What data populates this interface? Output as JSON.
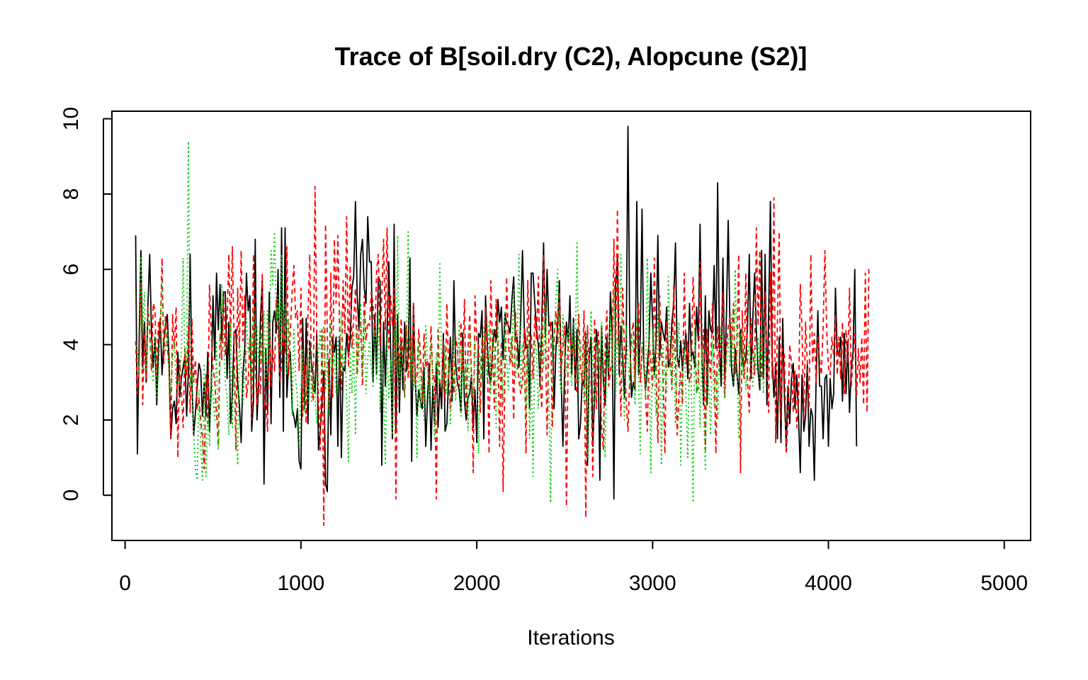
{
  "chart_data": {
    "type": "line",
    "title": "Trace of B[soil.dry (C2), Alopcune (S2)]",
    "xlabel": "Iterations",
    "ylabel": "",
    "xlim": [
      -75,
      5150
    ],
    "ylim": [
      -1.2,
      10.2
    ],
    "x_ticks": [
      0,
      1000,
      2000,
      3000,
      4000,
      5000
    ],
    "x_tick_labels": [
      "0",
      "1000",
      "2000",
      "3000",
      "4000",
      "5000"
    ],
    "y_ticks": [
      0,
      2,
      4,
      6,
      8,
      10
    ],
    "y_tick_labels": [
      "0",
      "2",
      "4",
      "6",
      "8",
      "10"
    ],
    "grid": false,
    "legend": "none",
    "x_start": 60,
    "x_step": 10,
    "series": [
      {
        "color": "#000000",
        "dash": "solid",
        "values": [
          6.9,
          1.1,
          4.2,
          6.5,
          3.4,
          4.6,
          3.0,
          5.1,
          6.4,
          4.3,
          3.4,
          4.2,
          2.4,
          3.9,
          4.7,
          3.2,
          4.1,
          4.5,
          4.8,
          3.6,
          1.5,
          2.3,
          2.5,
          1.9,
          3.8,
          2.6,
          3.1,
          3.4,
          3.7,
          2.1,
          3.3,
          6.4,
          3.0,
          1.6,
          2.2,
          2.9,
          3.5,
          3.3,
          2.1,
          3.0,
          2.1,
          3.8,
          1.7,
          2.9,
          5.3,
          3.6,
          5.9,
          4.4,
          5.6,
          4.1,
          5.4,
          5.4,
          3.1,
          4.6,
          1.9,
          2.7,
          4.3,
          4.4,
          3.0,
          2.4,
          1.4,
          3.2,
          3.9,
          5.9,
          4.9,
          5.3,
          1.7,
          2.5,
          6.8,
          2.0,
          3.0,
          4.7,
          5.7,
          0.3,
          3.9,
          2.2,
          5.4,
          1.9,
          4.6,
          4.9,
          4.3,
          6.0,
          2.6,
          7.1,
          1.7,
          7.1,
          2.6,
          3.5,
          3.8,
          2.3,
          2.1,
          1.8,
          2.3,
          0.9,
          0.7,
          4.7,
          2.3,
          4.7,
          1.9,
          4.1,
          3.5,
          3.2,
          2.7,
          4.3,
          1.2,
          1.7,
          2.5,
          3.3,
          0.3,
          0.1,
          3.6,
          1.6,
          4.2,
          3.8,
          4.2,
          1.3,
          4.2,
          1.0,
          3.4,
          3.3,
          4.3,
          3.7,
          4.1,
          5.5,
          5.8,
          7.8,
          5.3,
          4.4,
          6.4,
          6.8,
          5.5,
          5.1,
          7.4,
          6.2,
          6.2,
          3.0,
          4.8,
          3.2,
          5.8,
          5.7,
          0.8,
          4.6,
          2.9,
          4.4,
          6.2,
          3.9,
          1.5,
          7.2,
          1.7,
          4.8,
          2.2,
          4.1,
          2.8,
          4.6,
          3.3,
          3.7,
          6.3,
          0.9,
          5.1,
          3.1,
          2.1,
          2.8,
          2.5,
          2.3,
          3.4,
          1.3,
          2.6,
          3.5,
          1.2,
          2.9,
          1.9,
          3.5,
          1.8,
          3.0,
          2.3,
          4.3,
          1.7,
          1.9,
          3.1,
          4.2,
          2.5,
          5.7,
          3.5,
          3.0,
          2.8,
          2.2,
          4.3,
          2.5,
          2.0,
          2.6,
          2.7,
          3.2,
          1.8,
          2.8,
          1.4,
          4.3,
          4.2,
          4.9,
          1.5,
          5.3,
          4.0,
          3.2,
          3.0,
          3.9,
          4.4,
          4.1,
          5.2,
          4.6,
          5.0,
          3.6,
          4.8,
          4.6,
          4.5,
          4.3,
          5.2,
          5.8,
          4.1,
          4.2,
          3.4,
          4.7,
          6.5,
          4.5,
          3.9,
          4.0,
          2.3,
          5.9,
          5.9,
          5.1,
          4.4,
          4.0,
          2.9,
          4.6,
          6.7,
          4.2,
          6.0,
          4.5,
          4.5,
          4.6,
          2.3,
          3.9,
          4.5,
          5.7,
          3.1,
          1.3,
          3.4,
          4.6,
          4.1,
          5.3,
          3.2,
          4.7,
          2.8,
          4.4,
          1.5,
          1.9,
          3.1,
          2.9,
          4.3,
          0.8,
          3.7,
          4.2,
          1.3,
          2.6,
          4.4,
          3.8,
          0.4,
          4.5,
          3.1,
          2.4,
          4.2,
          3.1,
          5.4,
          4.3,
          -0.1,
          5.6,
          6.3,
          3.2,
          4.5,
          3.7,
          2.6,
          3.9,
          9.8,
          4.4,
          2.6,
          3.0,
          2.8,
          7.8,
          3.2,
          4.2,
          7.6,
          3.5,
          2.8,
          3.4,
          4.1,
          5.9,
          4.6,
          3.2,
          4.1,
          6.9,
          3.6,
          4.6,
          4.3,
          4.1,
          5.0,
          3.4,
          3.6,
          4.6,
          5.1,
          6.7,
          3.7,
          3.4,
          4.1,
          3.3,
          3.9,
          4.3,
          3.1,
          5.1,
          3.7,
          3.8,
          3.4,
          5.0,
          4.1,
          7.2,
          3.9,
          2.4,
          5.3,
          2.4,
          4.9,
          4.4,
          4.3,
          6.1,
          3.9,
          8.3,
          4.1,
          2.9,
          6.3,
          3.1,
          4.8,
          7.3,
          4.5,
          3.3,
          2.9,
          3.9,
          3.2,
          2.7,
          4.4,
          3.6,
          3.4,
          3.6,
          4.5,
          6.4,
          3.1,
          4.7,
          5.9,
          4.4,
          3.3,
          2.8,
          6.5,
          3.1,
          6.4,
          2.4,
          4.8,
          7.8,
          3.7,
          2.6,
          3.5,
          1.5,
          4.2,
          1.4,
          4.7,
          2.6,
          1.3,
          2.9,
          1.9,
          3.1,
          3.5,
          2.3,
          3.2,
          2.1,
          0.6,
          3.2,
          1.7,
          2.1,
          3.5,
          1.3,
          2.3,
          2.1,
          0.4,
          3.1,
          4.9,
          2.9,
          2.9,
          1.5,
          3.1,
          3.2,
          1.3,
          3.1,
          2.3,
          2.7,
          5.5,
          3.8,
          3.7,
          4.2,
          2.5,
          4.3,
          2.7,
          4.1,
          2.2,
          3.4,
          3.8,
          6.0,
          1.3
        ]
      },
      {
        "color": "#ff0000",
        "dash": "dashed",
        "values": [
          4.1,
          2.7,
          3.5,
          5.6,
          2.4,
          4.3,
          3.1,
          5.0,
          4.4,
          3.3,
          5.1,
          4.9,
          3.2,
          4.6,
          4.2,
          6.3,
          3.5,
          4.8,
          4.0,
          3.3,
          1.5,
          4.8,
          3.9,
          5.0,
          1.0,
          3.6,
          2.8,
          1.8,
          3.9,
          3.2,
          4.5,
          2.2,
          4.7,
          3.0,
          3.6,
          2.3,
          2.6,
          2.0,
          1.5,
          0.7,
          3.2,
          1.9,
          5.6,
          4.3,
          3.4,
          3.0,
          2.2,
          1.3,
          4.3,
          3.6,
          5.3,
          3.7,
          4.6,
          6.4,
          4.2,
          6.6,
          4.0,
          1.2,
          5.5,
          3.9,
          6.5,
          4.1,
          5.3,
          2.6,
          3.0,
          4.2,
          2.0,
          6.4,
          3.5,
          2.4,
          3.1,
          2.7,
          5.9,
          2.3,
          2.5,
          1.7,
          4.6,
          2.9,
          3.9,
          3.3,
          5.2,
          4.4,
          3.0,
          3.5,
          4.9,
          3.8,
          6.6,
          3.2,
          4.4,
          5.4,
          6.1,
          4.7,
          4.9,
          3.3,
          5.5,
          2.1,
          3.5,
          1.9,
          4.8,
          6.4,
          3.3,
          2.5,
          8.2,
          4.3,
          2.5,
          1.2,
          4.4,
          -0.8,
          7.2,
          4.3,
          2.3,
          5.9,
          2.6,
          6.8,
          5.1,
          6.9,
          4.4,
          2.8,
          5.7,
          4.3,
          7.4,
          3.4,
          6.1,
          3.9,
          4.7,
          5.5,
          3.2,
          4.4,
          4.6,
          2.9,
          5.3,
          4.1,
          4.6,
          4.5,
          5.4,
          5.1,
          4.2,
          5.9,
          6.4,
          4.0,
          5.3,
          6.8,
          4.4,
          7.1,
          3.9,
          5.3,
          4.5,
          5.5,
          -0.1,
          4.1,
          3.4,
          4.7,
          3.6,
          2.6,
          4.5,
          3.1,
          4.2,
          3.0,
          5.1,
          2.9,
          3.2,
          4.4,
          3.7,
          2.5,
          4.3,
          3.4,
          3.6,
          2.8,
          4.5,
          3.1,
          3.2,
          -0.1,
          4.4,
          3.0,
          2.8,
          4.1,
          2.5,
          5.1,
          3.3,
          2.3,
          3.6,
          2.7,
          4.2,
          3.9,
          2.9,
          4.6,
          3.3,
          5.2,
          2.2,
          3.9,
          4.8,
          3.1,
          0.6,
          5.3,
          4.1,
          4.0,
          2.2,
          4.2,
          3.4,
          5.0,
          3.6,
          1.1,
          5.7,
          3.9,
          2.3,
          5.2,
          4.0,
          1.3,
          4.1,
          0.1,
          3.2,
          5.8,
          4.0,
          3.5,
          4.2,
          2.0,
          4.9,
          3.5,
          3.1,
          2.7,
          3.0,
          4.4,
          1.1,
          5.7,
          3.9,
          4.3,
          3.1,
          4.8,
          4.1,
          5.8,
          3.1,
          2.3,
          6.4,
          4.4,
          1.6,
          4.3,
          4.6,
          1.8,
          4.2,
          4.9,
          4.0,
          5.4,
          3.3,
          3.9,
          4.5,
          -0.3,
          4.0,
          4.3,
          3.7,
          4.1,
          3.1,
          2.7,
          4.8,
          3.4,
          3.0,
          4.9,
          -0.6,
          4.5,
          3.2,
          3.0,
          0.5,
          4.7,
          2.3,
          4.4,
          3.7,
          1.8,
          1.2,
          3.9,
          4.9,
          2.9,
          3.3,
          3.6,
          6.8,
          3.9,
          7.6,
          3.7,
          2.1,
          5.5,
          3.8,
          2.5,
          1.7,
          3.1,
          4.3,
          4.6,
          2.9,
          4.4,
          5.1,
          3.0,
          3.9,
          3.6,
          2.6,
          1.7,
          4.1,
          3.5,
          2.9,
          6.3,
          3.2,
          1.4,
          5.3,
          3.9,
          3.1,
          1.1,
          4.6,
          3.7,
          3.9,
          2.8,
          5.6,
          3.7,
          1.6,
          2.7,
          3.3,
          2.4,
          5.9,
          3.5,
          4.1,
          3.0,
          3.2,
          5.8,
          4.5,
          2.7,
          2.9,
          6.2,
          3.5,
          4.4,
          1.2,
          4.4,
          3.7,
          3.1,
          5.1,
          3.6,
          1.1,
          4.5,
          3.3,
          4.3,
          5.4,
          2.6,
          3.8,
          4.5,
          4.7,
          3.9,
          5.1,
          3.2,
          3.9,
          6.4,
          0.6,
          4.9,
          3.1,
          5.9,
          3.0,
          2.2,
          4.7,
          3.9,
          3.2,
          7.1,
          4.5,
          6.5,
          3.1,
          4.3,
          5.4,
          3.4,
          2.2,
          5.9,
          3.1,
          7.9,
          1.4,
          4.6,
          7.0,
          2.0,
          3.9,
          3.7,
          1.1,
          2.0,
          4.0,
          3.5,
          2.2,
          3.3,
          1.8,
          2.5,
          5.6,
          4.4,
          2.0,
          4.6,
          3.5,
          2.3,
          6.4,
          3.5,
          4.3,
          3.0,
          4.2,
          3.6,
          3.2,
          4.5,
          6.5,
          4.4,
          3.4,
          3.2,
          4.2,
          3.7,
          4.8,
          3.2,
          4.2,
          3.1,
          4.6,
          2.7,
          4.4,
          3.5,
          5.5,
          2.9,
          3.6,
          4.3,
          2.6,
          3.9,
          3.0,
          4.2,
          2.4,
          5.9,
          2.2,
          6.1
        ]
      },
      {
        "color": "#00cd00",
        "dash": "dotted",
        "values": [
          4.1,
          3.8,
          3.1,
          6.3,
          4.4,
          5.4,
          3.3,
          4.9,
          4.2,
          3.6,
          3.0,
          4.3,
          2.6,
          3.3,
          4.5,
          5.7,
          4.2,
          3.8,
          4.4,
          3.2,
          2.7,
          3.6,
          4.1,
          3.0,
          2.9,
          3.1,
          3.8,
          6.3,
          3.2,
          3.6,
          9.4,
          2.9,
          3.3,
          1.7,
          0.7,
          0.4,
          2.8,
          1.3,
          0.4,
          3.5,
          0.5,
          2.4,
          1.3,
          3.3,
          2.6,
          2.0,
          4.1,
          1.2,
          3.8,
          5.6,
          4.2,
          3.0,
          2.6,
          1.6,
          4.6,
          1.8,
          3.4,
          1.9,
          0.8,
          4.1,
          3.5,
          2.4,
          3.3,
          4.7,
          3.8,
          4.2,
          2.7,
          5.0,
          3.6,
          4.5,
          3.5,
          4.3,
          3.5,
          4.9,
          3.0,
          4.9,
          3.6,
          6.5,
          5.6,
          7.0,
          4.6,
          5.3,
          3.8,
          6.4,
          4.1,
          5.1,
          3.2,
          4.7,
          3.5,
          2.1,
          4.4,
          3.1,
          2.6,
          1.3,
          2.8,
          3.9,
          2.2,
          3.3,
          2.4,
          4.0,
          2.5,
          3.4,
          2.6,
          1.9,
          3.8,
          4.4,
          3.2,
          4.5,
          2.8,
          3.9,
          2.1,
          4.6,
          3.4,
          3.7,
          2.7,
          4.2,
          3.1,
          4.9,
          3.3,
          3.9,
          2.6,
          0.9,
          3.8,
          2.7,
          4.3,
          1.6,
          4.5,
          3.6,
          5.1,
          3.2,
          4.8,
          2.7,
          3.6,
          4.1,
          3.4,
          2.9,
          4.4,
          3.1,
          4.9,
          2.2,
          3.8,
          3.0,
          0.8,
          4.2,
          2.6,
          3.6,
          1.6,
          4.4,
          3.2,
          6.9,
          2.8,
          4.0,
          3.4,
          2.6,
          3.9,
          7.0,
          3.1,
          4.2,
          2.8,
          3.5,
          1.0,
          4.1,
          2.3,
          3.3,
          2.0,
          4.5,
          3.5,
          2.4,
          4.1,
          3.2,
          1.5,
          3.8,
          2.9,
          6.2,
          3.4,
          2.8,
          4.0,
          2.7,
          3.6,
          1.9,
          3.1,
          4.2,
          2.5,
          3.4,
          4.6,
          2.1,
          3.9,
          2.9,
          3.5,
          1.7,
          4.5,
          3.1,
          2.6,
          4.1,
          3.4,
          1.1,
          3.7,
          3.1,
          4.5,
          3.9,
          3.0,
          4.6,
          2.7,
          4.4,
          3.8,
          1.8,
          4.7,
          3.1,
          3.9,
          2.4,
          4.9,
          3.6,
          2.8,
          4.2,
          3.5,
          5.5,
          3.1,
          3.8,
          6.4,
          2.9,
          4.0,
          3.5,
          2.0,
          4.5,
          1.5,
          3.3,
          0.5,
          4.1,
          3.8,
          2.3,
          3.2,
          4.6,
          3.4,
          5.2,
          3.6,
          2.8,
          -0.2,
          4.2,
          3.9,
          5.2,
          6.0,
          3.2,
          2.7,
          4.8,
          3.7,
          3.3,
          4.4,
          3.5,
          2.9,
          4.6,
          3.8,
          6.7,
          3.0,
          4.1,
          3.6,
          2.5,
          4.4,
          1.0,
          3.3,
          4.9,
          3.5,
          2.4,
          4.1,
          3.8,
          3.1,
          4.6,
          2.7,
          1.0,
          3.9,
          3.4,
          4.8,
          3.2,
          5.5,
          2.6,
          4.2,
          3.7,
          6.4,
          3.1,
          2.0,
          4.5,
          3.6,
          2.9,
          4.3,
          3.8,
          2.4,
          4.7,
          3.2,
          1.1,
          4.1,
          3.5,
          2.6,
          6.3,
          3.9,
          0.6,
          4.4,
          3.3,
          2.1,
          4.8,
          3.6,
          0.8,
          4.0,
          3.1,
          2.7,
          5.8,
          3.4,
          2.9,
          4.3,
          1.9,
          3.7,
          4.6,
          0.8,
          3.2,
          3.9,
          2.6,
          1.0,
          3.8,
          3.0,
          -0.2,
          4.4,
          2.7,
          3.6,
          1.8,
          4.0,
          2.3,
          0.7,
          3.5,
          2.9,
          1.6,
          4.1,
          2.4,
          3.3,
          2.0,
          3.8,
          4.5,
          3.1,
          2.6,
          3.7,
          4.2,
          3.4,
          4.8,
          3.0,
          6.0,
          3.6,
          1.5,
          4.3,
          3.2,
          4.0,
          2.8,
          3.5,
          4.1,
          3.6,
          2.9,
          3.8,
          3.3,
          4.2,
          3.0,
          4.5,
          2.7,
          3.9
        ]
      }
    ]
  }
}
